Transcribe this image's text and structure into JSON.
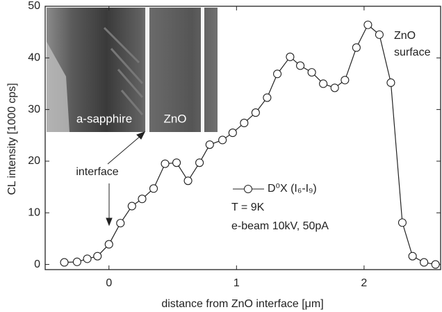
{
  "chart_data": {
    "type": "line",
    "x_label": "distance from ZnO interface [μm]",
    "y_label": "CL intensity [1000 cps]",
    "xlim": [
      -0.5,
      2.6
    ],
    "xticks": [
      0,
      1,
      2
    ],
    "ylim": [
      -1,
      50
    ],
    "yticks": [
      0,
      10,
      20,
      30,
      40,
      50
    ],
    "series": [
      {
        "name": "D⁰X (I₆-I₉)",
        "color": "#222222",
        "x": [
          -0.35,
          -0.25,
          -0.17,
          -0.09,
          0,
          0.09,
          0.18,
          0.26,
          0.35,
          0.44,
          0.53,
          0.62,
          0.71,
          0.79,
          0.89,
          0.97,
          1.06,
          1.15,
          1.24,
          1.32,
          1.42,
          1.5,
          1.59,
          1.68,
          1.77,
          1.85,
          1.94,
          2.03,
          2.12,
          2.21,
          2.3,
          2.38,
          2.47,
          2.56
        ],
        "values": [
          0.4,
          0.5,
          1.1,
          1.6,
          3.9,
          8.0,
          11.3,
          12.7,
          14.7,
          19.5,
          19.7,
          16.2,
          19.7,
          23.2,
          24.1,
          25.5,
          27.4,
          29.4,
          32.3,
          36.9,
          40.2,
          38.5,
          37.2,
          35.0,
          34.2,
          35.7,
          42.0,
          46.4,
          44.5,
          35.2,
          8.1,
          1.6,
          0.4,
          0
        ]
      }
    ],
    "annotations": {
      "interface": "interface",
      "surface_1": "ZnO",
      "surface_2": "surface",
      "temperature": "T = 9K",
      "beam": "e-beam 10kV, 50pA"
    },
    "inset": {
      "left_label": "a-sapphire",
      "right_label": "ZnO"
    }
  }
}
